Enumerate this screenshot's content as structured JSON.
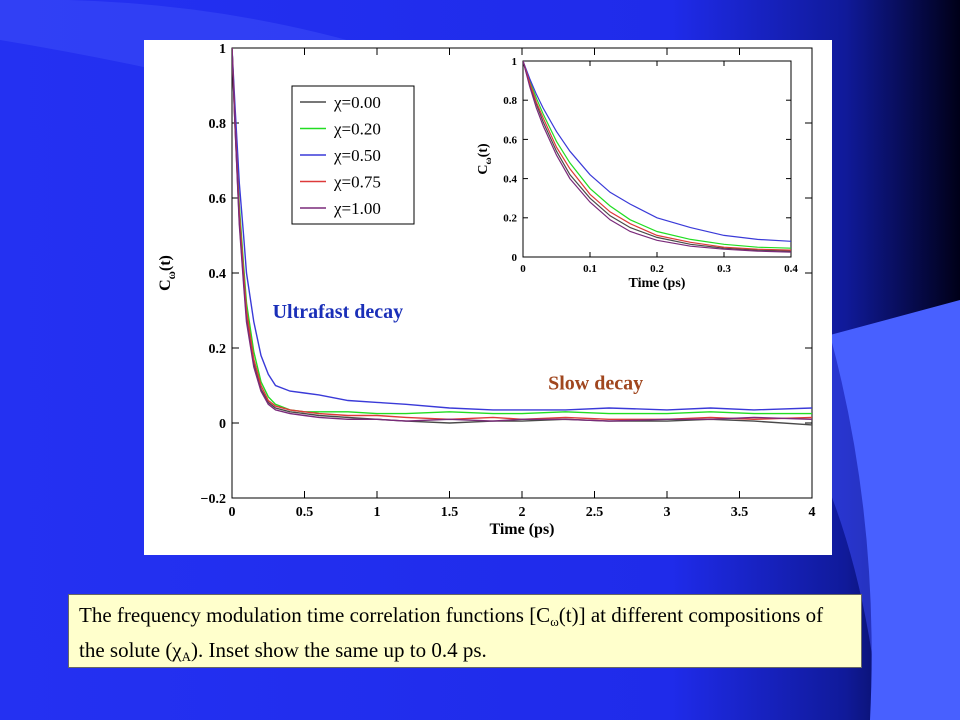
{
  "colors": {
    "background": "#1e2cf0",
    "panel": "#ffffff",
    "caption_bg": "#ffffcc",
    "annotation_ultrafast": "#1a2fb8",
    "annotation_slow": "#a0461e",
    "series": [
      "#4a4a4a",
      "#22dd22",
      "#3a3ad8",
      "#dd3a3a",
      "#7a2a7a"
    ]
  },
  "chart_data": [
    {
      "id": "main",
      "type": "line",
      "xlabel": "Time (ps)",
      "ylabel": "C_ω(t)",
      "xlim": [
        0,
        4
      ],
      "ylim": [
        -0.2,
        1
      ],
      "xticks": [
        0,
        0.5,
        1,
        1.5,
        2,
        2.5,
        3,
        3.5,
        4
      ],
      "xtick_labels": [
        "0",
        "0.5",
        "1",
        "1.5",
        "2",
        "2.5",
        "3",
        "3.5",
        "4"
      ],
      "yticks": [
        -0.2,
        0,
        0.2,
        0.4,
        0.6,
        0.8,
        1
      ],
      "ytick_labels": [
        "−0.2",
        "0",
        "0.2",
        "0.4",
        "0.6",
        "0.8",
        "1"
      ],
      "grid": false,
      "legend_position": "top-left",
      "series": [
        {
          "name": "χ=0.00",
          "x": [
            0,
            0.02,
            0.05,
            0.08,
            0.1,
            0.15,
            0.2,
            0.25,
            0.3,
            0.4,
            0.5,
            0.6,
            0.8,
            1,
            1.2,
            1.5,
            1.8,
            2,
            2.3,
            2.6,
            3,
            3.3,
            3.6,
            4
          ],
          "y": [
            1,
            0.8,
            0.54,
            0.38,
            0.28,
            0.16,
            0.09,
            0.055,
            0.04,
            0.03,
            0.025,
            0.02,
            0.015,
            0.01,
            0.005,
            0.0,
            0.005,
            0.005,
            0.01,
            0.005,
            0.005,
            0.01,
            0.005,
            -0.005
          ]
        },
        {
          "name": "χ=0.20",
          "x": [
            0,
            0.02,
            0.05,
            0.08,
            0.1,
            0.15,
            0.2,
            0.25,
            0.3,
            0.4,
            0.5,
            0.6,
            0.8,
            1,
            1.2,
            1.5,
            1.8,
            2,
            2.3,
            2.6,
            3,
            3.3,
            3.6,
            4
          ],
          "y": [
            1,
            0.82,
            0.58,
            0.42,
            0.32,
            0.19,
            0.11,
            0.07,
            0.05,
            0.035,
            0.03,
            0.03,
            0.03,
            0.025,
            0.025,
            0.03,
            0.025,
            0.025,
            0.03,
            0.025,
            0.025,
            0.03,
            0.025,
            0.025
          ]
        },
        {
          "name": "χ=0.50",
          "x": [
            0,
            0.02,
            0.05,
            0.08,
            0.1,
            0.15,
            0.2,
            0.25,
            0.3,
            0.4,
            0.5,
            0.6,
            0.8,
            1,
            1.2,
            1.5,
            1.8,
            2,
            2.3,
            2.6,
            3,
            3.3,
            3.6,
            4
          ],
          "y": [
            1,
            0.85,
            0.64,
            0.5,
            0.4,
            0.27,
            0.18,
            0.13,
            0.1,
            0.085,
            0.08,
            0.075,
            0.06,
            0.055,
            0.05,
            0.04,
            0.035,
            0.035,
            0.035,
            0.04,
            0.035,
            0.04,
            0.035,
            0.04
          ]
        },
        {
          "name": "χ=0.75",
          "x": [
            0,
            0.02,
            0.05,
            0.08,
            0.1,
            0.15,
            0.2,
            0.25,
            0.3,
            0.4,
            0.5,
            0.6,
            0.8,
            1,
            1.2,
            1.5,
            1.8,
            2,
            2.3,
            2.6,
            3,
            3.3,
            3.6,
            4
          ],
          "y": [
            1,
            0.81,
            0.56,
            0.4,
            0.3,
            0.17,
            0.1,
            0.06,
            0.045,
            0.035,
            0.03,
            0.025,
            0.02,
            0.02,
            0.015,
            0.01,
            0.015,
            0.01,
            0.015,
            0.01,
            0.01,
            0.015,
            0.01,
            0.015
          ]
        },
        {
          "name": "χ=1.00",
          "x": [
            0,
            0.02,
            0.05,
            0.08,
            0.1,
            0.15,
            0.2,
            0.25,
            0.3,
            0.4,
            0.5,
            0.6,
            0.8,
            1,
            1.2,
            1.5,
            1.8,
            2,
            2.3,
            2.6,
            3,
            3.3,
            3.6,
            4
          ],
          "y": [
            1,
            0.8,
            0.53,
            0.37,
            0.27,
            0.15,
            0.085,
            0.05,
            0.035,
            0.025,
            0.02,
            0.015,
            0.01,
            0.01,
            0.005,
            0.01,
            0.005,
            0.01,
            0.01,
            0.005,
            0.01,
            0.01,
            0.015,
            0.01
          ]
        }
      ],
      "annotations": [
        {
          "text": "Ultrafast decay",
          "x": 0.28,
          "y": 0.28
        },
        {
          "text": "Slow decay",
          "x": 2.18,
          "y": 0.09
        }
      ]
    },
    {
      "id": "inset",
      "type": "line",
      "xlabel": "Time (ps)",
      "ylabel": "C_ω(t)",
      "xlim": [
        0,
        0.4
      ],
      "ylim": [
        0,
        1
      ],
      "xticks": [
        0,
        0.1,
        0.2,
        0.3,
        0.4
      ],
      "xtick_labels": [
        "0",
        "0.1",
        "0.2",
        "0.3",
        "0.4"
      ],
      "yticks": [
        0,
        0.2,
        0.4,
        0.6,
        0.8,
        1
      ],
      "ytick_labels": [
        "0",
        "0.2",
        "0.4",
        "0.6",
        "0.8",
        "1"
      ],
      "grid": false,
      "series": [
        {
          "name": "χ=0.00",
          "x": [
            0,
            0.01,
            0.02,
            0.03,
            0.05,
            0.07,
            0.1,
            0.13,
            0.16,
            0.2,
            0.25,
            0.3,
            0.35,
            0.4
          ],
          "y": [
            1,
            0.88,
            0.78,
            0.69,
            0.54,
            0.42,
            0.3,
            0.21,
            0.15,
            0.1,
            0.065,
            0.045,
            0.035,
            0.03
          ]
        },
        {
          "name": "χ=0.20",
          "x": [
            0,
            0.01,
            0.02,
            0.03,
            0.05,
            0.07,
            0.1,
            0.13,
            0.16,
            0.2,
            0.25,
            0.3,
            0.35,
            0.4
          ],
          "y": [
            1,
            0.9,
            0.81,
            0.73,
            0.59,
            0.48,
            0.35,
            0.26,
            0.19,
            0.13,
            0.09,
            0.065,
            0.05,
            0.045
          ]
        },
        {
          "name": "χ=0.50",
          "x": [
            0,
            0.01,
            0.02,
            0.03,
            0.05,
            0.07,
            0.1,
            0.13,
            0.16,
            0.2,
            0.25,
            0.3,
            0.35,
            0.4
          ],
          "y": [
            1,
            0.91,
            0.83,
            0.76,
            0.64,
            0.54,
            0.42,
            0.33,
            0.27,
            0.2,
            0.15,
            0.11,
            0.09,
            0.08
          ]
        },
        {
          "name": "χ=0.75",
          "x": [
            0,
            0.01,
            0.02,
            0.03,
            0.05,
            0.07,
            0.1,
            0.13,
            0.16,
            0.2,
            0.25,
            0.3,
            0.35,
            0.4
          ],
          "y": [
            1,
            0.89,
            0.79,
            0.71,
            0.56,
            0.45,
            0.32,
            0.23,
            0.17,
            0.11,
            0.075,
            0.05,
            0.04,
            0.035
          ]
        },
        {
          "name": "χ=1.00",
          "x": [
            0,
            0.01,
            0.02,
            0.03,
            0.05,
            0.07,
            0.1,
            0.13,
            0.16,
            0.2,
            0.25,
            0.3,
            0.35,
            0.4
          ],
          "y": [
            1,
            0.87,
            0.76,
            0.67,
            0.52,
            0.4,
            0.28,
            0.19,
            0.13,
            0.085,
            0.055,
            0.04,
            0.03,
            0.025
          ]
        }
      ]
    }
  ],
  "caption": {
    "part1": "The frequency modulation time correlation functions [C",
    "sub1": "ω",
    "part2": "(t)] at different compositions of the solute (χ",
    "sub2": "A",
    "part3": "). Inset show the same up to 0.4 ps."
  }
}
